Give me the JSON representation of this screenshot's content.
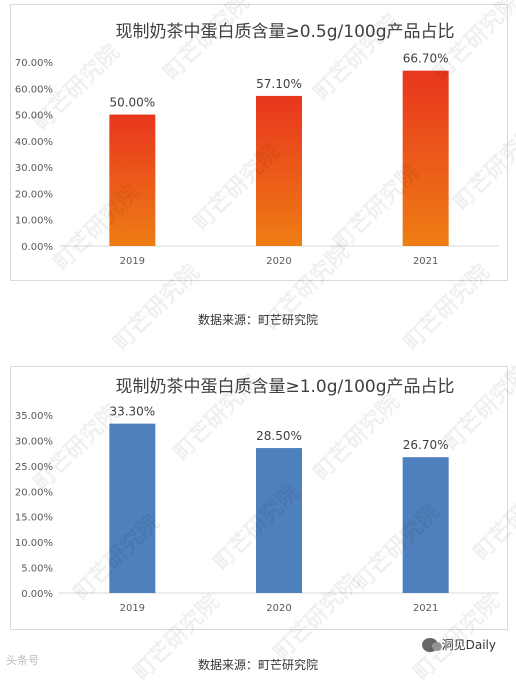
{
  "chart_data": [
    {
      "type": "bar",
      "title": "现制奶茶中蛋白质含量≥0.5g/100g产品占比",
      "categories": [
        "2019",
        "2020",
        "2021"
      ],
      "values": [
        50.0,
        57.1,
        66.7
      ],
      "value_labels": [
        "50.00%",
        "57.10%",
        "66.70%"
      ],
      "ylim": [
        0,
        70
      ],
      "y_ticks": [
        "0.00%",
        "10.00%",
        "20.00%",
        "30.00%",
        "40.00%",
        "50.00%",
        "60.00%",
        "70.00%"
      ],
      "y_tick_values": [
        0,
        10,
        20,
        30,
        40,
        50,
        60,
        70
      ],
      "grid": false,
      "bar_color_top": "#e8361e",
      "bar_color_bottom": "#ee7d14"
    },
    {
      "type": "bar",
      "title": "现制奶茶中蛋白质含量≥1.0g/100g产品占比",
      "categories": [
        "2019",
        "2020",
        "2021"
      ],
      "values": [
        33.3,
        28.5,
        26.7
      ],
      "value_labels": [
        "33.30%",
        "28.50%",
        "26.70%"
      ],
      "ylim": [
        0,
        35
      ],
      "y_ticks": [
        "0.00%",
        "5.00%",
        "10.00%",
        "15.00%",
        "20.00%",
        "25.00%",
        "30.00%",
        "35.00%"
      ],
      "y_tick_values": [
        0,
        5,
        10,
        15,
        20,
        25,
        30,
        35
      ],
      "grid": false,
      "bar_color": "#4e80bd"
    }
  ],
  "source_label_1": "数据来源：町芒研究院",
  "source_label_2": "数据来源：町芒研究院",
  "watermark": "町芒研究院",
  "brand": "洞见Daily",
  "corner_logo": "头条号"
}
